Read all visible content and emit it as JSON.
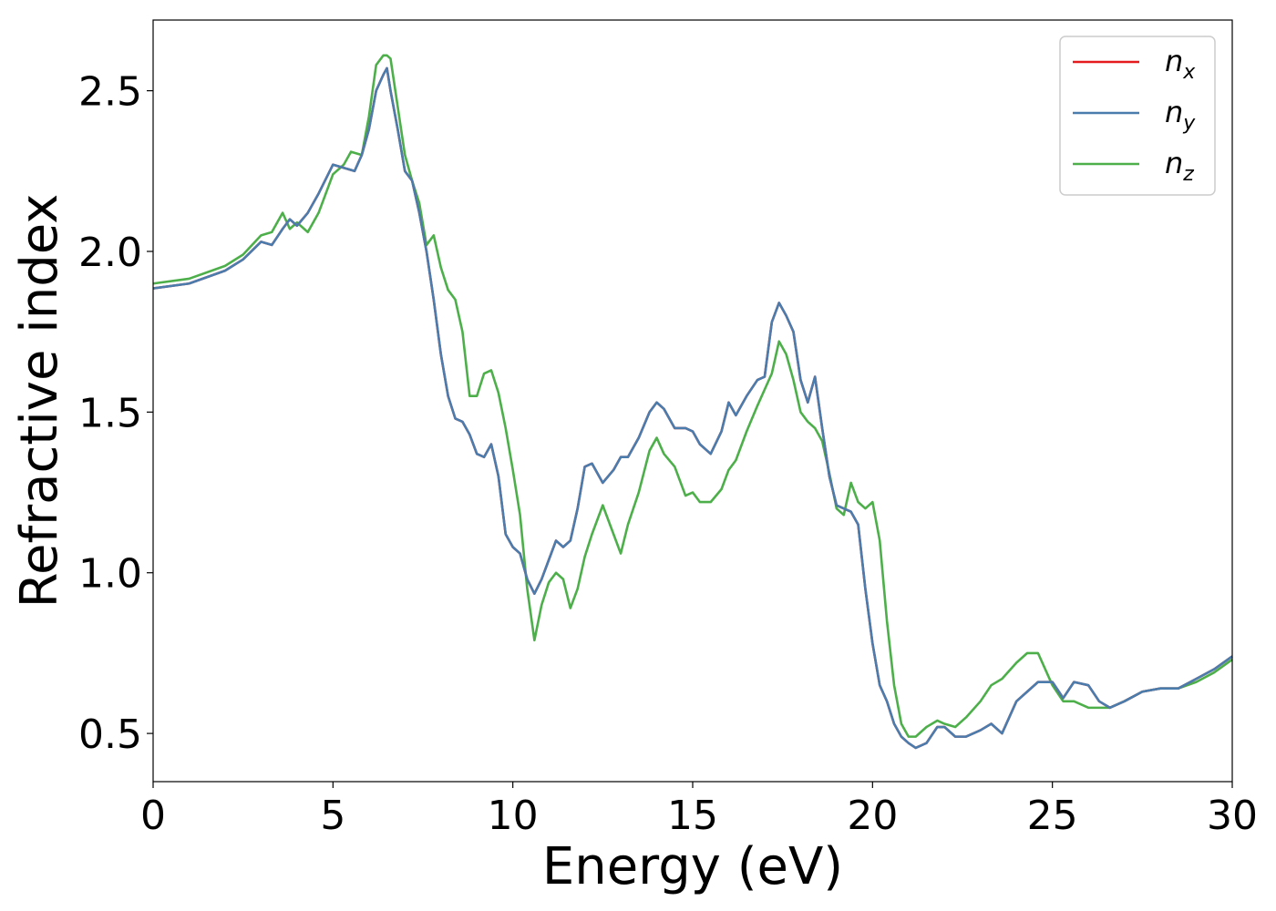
{
  "chart_data": {
    "type": "line",
    "xlabel": "Energy (eV)",
    "ylabel": "Refractive index",
    "xlim": [
      0,
      30
    ],
    "ylim": [
      0.35,
      2.72
    ],
    "xticks": [
      0,
      5,
      10,
      15,
      20,
      25,
      30
    ],
    "xtick_labels": [
      "0",
      "5",
      "10",
      "15",
      "20",
      "25",
      "30"
    ],
    "yticks": [
      0.5,
      1.0,
      1.5,
      2.0,
      2.5
    ],
    "ytick_labels": [
      "0.5",
      "1.0",
      "1.5",
      "2.0",
      "2.5"
    ],
    "grid": false,
    "legend_position": "top-right",
    "series": [
      {
        "name": "n_x",
        "label_main": "n",
        "label_sub": "x",
        "color": "#e41a1c",
        "x": [
          0,
          1,
          2,
          2.5,
          3,
          3.3,
          3.6,
          3.8,
          4.0,
          4.3,
          4.6,
          5.0,
          5.3,
          5.6,
          5.8,
          6.0,
          6.2,
          6.4,
          6.5,
          6.6,
          6.8,
          7.0,
          7.2,
          7.4,
          7.6,
          7.8,
          8.0,
          8.2,
          8.4,
          8.6,
          8.8,
          9.0,
          9.2,
          9.4,
          9.6,
          9.8,
          10.0,
          10.2,
          10.4,
          10.6,
          10.8,
          11.0,
          11.2,
          11.4,
          11.6,
          11.8,
          12.0,
          12.2,
          12.5,
          12.8,
          13.0,
          13.2,
          13.5,
          13.8,
          14.0,
          14.2,
          14.5,
          14.8,
          15.0,
          15.2,
          15.5,
          15.8,
          16.0,
          16.2,
          16.5,
          16.8,
          17.0,
          17.2,
          17.4,
          17.6,
          17.8,
          18.0,
          18.2,
          18.4,
          18.6,
          18.8,
          19.0,
          19.2,
          19.4,
          19.6,
          19.8,
          20.0,
          20.2,
          20.4,
          20.6,
          20.8,
          21.0,
          21.2,
          21.5,
          21.8,
          22.0,
          22.3,
          22.6,
          23.0,
          23.3,
          23.6,
          24.0,
          24.3,
          24.6,
          25.0,
          25.3,
          25.6,
          26.0,
          26.3,
          26.6,
          27.0,
          27.5,
          28.0,
          28.5,
          29.0,
          29.5,
          30.0
        ],
        "y": [
          1.885,
          1.9,
          1.94,
          1.975,
          2.03,
          2.02,
          2.07,
          2.1,
          2.08,
          2.12,
          2.18,
          2.27,
          2.26,
          2.25,
          2.3,
          2.38,
          2.5,
          2.55,
          2.57,
          2.5,
          2.38,
          2.25,
          2.22,
          2.12,
          2.0,
          1.85,
          1.68,
          1.55,
          1.48,
          1.47,
          1.43,
          1.37,
          1.36,
          1.4,
          1.3,
          1.12,
          1.08,
          1.06,
          0.98,
          0.935,
          0.98,
          1.04,
          1.1,
          1.08,
          1.1,
          1.2,
          1.33,
          1.34,
          1.28,
          1.32,
          1.36,
          1.36,
          1.42,
          1.5,
          1.53,
          1.51,
          1.45,
          1.45,
          1.44,
          1.4,
          1.37,
          1.44,
          1.53,
          1.49,
          1.55,
          1.6,
          1.61,
          1.78,
          1.84,
          1.8,
          1.75,
          1.6,
          1.53,
          1.61,
          1.45,
          1.3,
          1.21,
          1.2,
          1.19,
          1.15,
          0.95,
          0.78,
          0.65,
          0.6,
          0.53,
          0.49,
          0.47,
          0.455,
          0.47,
          0.52,
          0.52,
          0.49,
          0.49,
          0.51,
          0.53,
          0.5,
          0.6,
          0.63,
          0.66,
          0.66,
          0.61,
          0.66,
          0.65,
          0.6,
          0.58,
          0.6,
          0.63,
          0.64,
          0.64,
          0.67,
          0.7,
          0.74
        ]
      },
      {
        "name": "n_y",
        "label_main": "n",
        "label_sub": "y",
        "color": "#4a7dad",
        "x": [
          0,
          1,
          2,
          2.5,
          3,
          3.3,
          3.6,
          3.8,
          4.0,
          4.3,
          4.6,
          5.0,
          5.3,
          5.6,
          5.8,
          6.0,
          6.2,
          6.4,
          6.5,
          6.6,
          6.8,
          7.0,
          7.2,
          7.4,
          7.6,
          7.8,
          8.0,
          8.2,
          8.4,
          8.6,
          8.8,
          9.0,
          9.2,
          9.4,
          9.6,
          9.8,
          10.0,
          10.2,
          10.4,
          10.6,
          10.8,
          11.0,
          11.2,
          11.4,
          11.6,
          11.8,
          12.0,
          12.2,
          12.5,
          12.8,
          13.0,
          13.2,
          13.5,
          13.8,
          14.0,
          14.2,
          14.5,
          14.8,
          15.0,
          15.2,
          15.5,
          15.8,
          16.0,
          16.2,
          16.5,
          16.8,
          17.0,
          17.2,
          17.4,
          17.6,
          17.8,
          18.0,
          18.2,
          18.4,
          18.6,
          18.8,
          19.0,
          19.2,
          19.4,
          19.6,
          19.8,
          20.0,
          20.2,
          20.4,
          20.6,
          20.8,
          21.0,
          21.2,
          21.5,
          21.8,
          22.0,
          22.3,
          22.6,
          23.0,
          23.3,
          23.6,
          24.0,
          24.3,
          24.6,
          25.0,
          25.3,
          25.6,
          26.0,
          26.3,
          26.6,
          27.0,
          27.5,
          28.0,
          28.5,
          29.0,
          29.5,
          30.0
        ],
        "y": [
          1.885,
          1.9,
          1.94,
          1.975,
          2.03,
          2.02,
          2.07,
          2.1,
          2.08,
          2.12,
          2.18,
          2.27,
          2.26,
          2.25,
          2.3,
          2.38,
          2.5,
          2.55,
          2.57,
          2.5,
          2.38,
          2.25,
          2.22,
          2.12,
          2.0,
          1.85,
          1.68,
          1.55,
          1.48,
          1.47,
          1.43,
          1.37,
          1.36,
          1.4,
          1.3,
          1.12,
          1.08,
          1.06,
          0.98,
          0.935,
          0.98,
          1.04,
          1.1,
          1.08,
          1.1,
          1.2,
          1.33,
          1.34,
          1.28,
          1.32,
          1.36,
          1.36,
          1.42,
          1.5,
          1.53,
          1.51,
          1.45,
          1.45,
          1.44,
          1.4,
          1.37,
          1.44,
          1.53,
          1.49,
          1.55,
          1.6,
          1.61,
          1.78,
          1.84,
          1.8,
          1.75,
          1.6,
          1.53,
          1.61,
          1.45,
          1.3,
          1.21,
          1.2,
          1.19,
          1.15,
          0.95,
          0.78,
          0.65,
          0.6,
          0.53,
          0.49,
          0.47,
          0.455,
          0.47,
          0.52,
          0.52,
          0.49,
          0.49,
          0.51,
          0.53,
          0.5,
          0.6,
          0.63,
          0.66,
          0.66,
          0.61,
          0.66,
          0.65,
          0.6,
          0.58,
          0.6,
          0.63,
          0.64,
          0.64,
          0.67,
          0.7,
          0.74
        ]
      },
      {
        "name": "n_z",
        "label_main": "n",
        "label_sub": "z",
        "color": "#4daf4a",
        "x": [
          0,
          1,
          2,
          2.5,
          3,
          3.3,
          3.6,
          3.8,
          4.0,
          4.3,
          4.6,
          5.0,
          5.3,
          5.5,
          5.8,
          6.0,
          6.2,
          6.4,
          6.5,
          6.6,
          6.8,
          7.0,
          7.2,
          7.4,
          7.6,
          7.8,
          8.0,
          8.2,
          8.4,
          8.6,
          8.8,
          9.0,
          9.2,
          9.4,
          9.6,
          9.8,
          10.0,
          10.2,
          10.4,
          10.6,
          10.8,
          11.0,
          11.2,
          11.4,
          11.6,
          11.8,
          12.0,
          12.2,
          12.5,
          12.8,
          13.0,
          13.2,
          13.5,
          13.8,
          14.0,
          14.2,
          14.5,
          14.8,
          15.0,
          15.2,
          15.5,
          15.8,
          16.0,
          16.2,
          16.5,
          16.8,
          17.0,
          17.2,
          17.4,
          17.6,
          17.8,
          18.0,
          18.2,
          18.4,
          18.6,
          18.8,
          19.0,
          19.2,
          19.4,
          19.6,
          19.8,
          20.0,
          20.2,
          20.4,
          20.6,
          20.8,
          21.0,
          21.2,
          21.5,
          21.8,
          22.0,
          22.3,
          22.6,
          23.0,
          23.3,
          23.6,
          24.0,
          24.3,
          24.6,
          25.0,
          25.3,
          25.6,
          26.0,
          26.3,
          26.6,
          27.0,
          27.5,
          28.0,
          28.5,
          29.0,
          29.5,
          30.0
        ],
        "y": [
          1.9,
          1.915,
          1.955,
          1.99,
          2.05,
          2.06,
          2.12,
          2.07,
          2.09,
          2.06,
          2.12,
          2.24,
          2.27,
          2.31,
          2.3,
          2.42,
          2.58,
          2.61,
          2.61,
          2.6,
          2.45,
          2.3,
          2.22,
          2.15,
          2.02,
          2.05,
          1.95,
          1.88,
          1.85,
          1.75,
          1.55,
          1.55,
          1.62,
          1.63,
          1.56,
          1.45,
          1.32,
          1.18,
          0.95,
          0.79,
          0.9,
          0.97,
          1.0,
          0.98,
          0.89,
          0.95,
          1.05,
          1.12,
          1.21,
          1.12,
          1.06,
          1.15,
          1.25,
          1.38,
          1.42,
          1.37,
          1.33,
          1.24,
          1.25,
          1.22,
          1.22,
          1.26,
          1.32,
          1.35,
          1.44,
          1.52,
          1.57,
          1.62,
          1.72,
          1.68,
          1.6,
          1.5,
          1.47,
          1.45,
          1.41,
          1.31,
          1.2,
          1.18,
          1.28,
          1.22,
          1.2,
          1.22,
          1.1,
          0.85,
          0.65,
          0.53,
          0.49,
          0.49,
          0.52,
          0.54,
          0.53,
          0.52,
          0.55,
          0.6,
          0.65,
          0.67,
          0.72,
          0.75,
          0.75,
          0.65,
          0.6,
          0.6,
          0.58,
          0.58,
          0.58,
          0.6,
          0.63,
          0.64,
          0.64,
          0.66,
          0.69,
          0.73
        ]
      }
    ]
  }
}
